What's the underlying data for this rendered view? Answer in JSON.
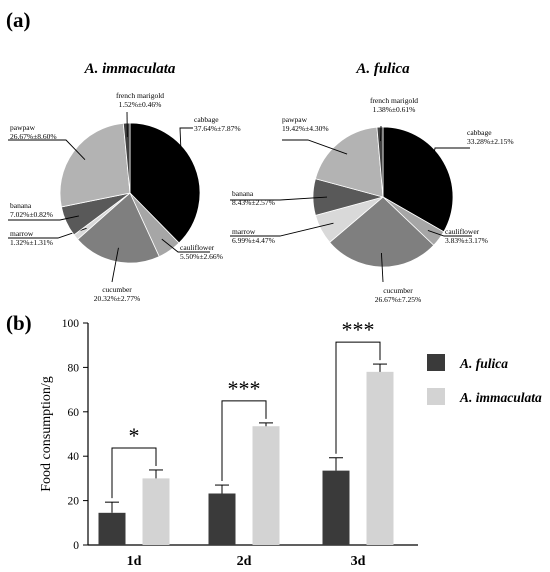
{
  "panel_labels": {
    "a": "(a)",
    "b": "(b)"
  },
  "colors": {
    "cabbage": "#000000",
    "cauliflower": "#a6a6a6",
    "cucumber": "#7f7f7f",
    "marrow": "#d9d9d9",
    "banana": "#595959",
    "pawpaw": "#b3b3b3",
    "french_marigold": "#404040",
    "fulica_bar": "#3a3a3a",
    "immaculata_bar": "#d3d3d3"
  },
  "chart_data": [
    {
      "type": "pie",
      "title": "A. immaculata",
      "slices": [
        {
          "key": "cabbage",
          "name": "cabbage",
          "value": 37.64,
          "label_value": "37.64%±7.87%"
        },
        {
          "key": "cauliflower",
          "name": "cauliflower",
          "value": 5.5,
          "label_value": "5.50%±2.66%"
        },
        {
          "key": "cucumber",
          "name": "cucumber",
          "value": 20.32,
          "label_value": "20.32%±2.77%"
        },
        {
          "key": "marrow",
          "name": "marrow",
          "value": 1.32,
          "label_value": "1.32%±1.31%"
        },
        {
          "key": "banana",
          "name": "banana",
          "value": 7.02,
          "label_value": "7.02%±0.82%"
        },
        {
          "key": "pawpaw",
          "name": "pawpaw",
          "value": 26.67,
          "label_value": "26.67%±8.60%"
        },
        {
          "key": "french_marigold",
          "name": "french marigold",
          "value": 1.52,
          "label_value": "1.52%±0.46%"
        }
      ]
    },
    {
      "type": "pie",
      "title": "A. fulica",
      "slices": [
        {
          "key": "cabbage",
          "name": "cabbage",
          "value": 33.28,
          "label_value": "33.28%±2.15%"
        },
        {
          "key": "cauliflower",
          "name": "cauliflower",
          "value": 3.83,
          "label_value": "3.83%±3.17%"
        },
        {
          "key": "cucumber",
          "name": "cucumber",
          "value": 26.67,
          "label_value": "26.67%±7.25%"
        },
        {
          "key": "marrow",
          "name": "marrow",
          "value": 6.99,
          "label_value": "6.99%±4.47%"
        },
        {
          "key": "banana",
          "name": "banana",
          "value": 8.43,
          "label_value": "8.43%±2.57%"
        },
        {
          "key": "pawpaw",
          "name": "pawpaw",
          "value": 19.42,
          "label_value": "19.42%±4.30%"
        },
        {
          "key": "french_marigold",
          "name": "french marigold",
          "value": 1.38,
          "label_value": "1.38%±0.61%"
        }
      ]
    },
    {
      "type": "bar",
      "categories": [
        "1d",
        "2d",
        "3d"
      ],
      "series": [
        {
          "name": "A. fulica",
          "values": [
            14.5,
            23.2,
            33.5
          ],
          "errors": [
            4.8,
            3.8,
            5.8
          ]
        },
        {
          "name": "A. immaculata",
          "values": [
            30.0,
            53.5,
            78.0
          ],
          "errors": [
            3.8,
            1.5,
            3.5
          ]
        }
      ],
      "significance": [
        "*",
        "***",
        "***"
      ],
      "ylabel": "Food consumption/g",
      "ylim": [
        0,
        100
      ],
      "yticks": [
        0,
        20,
        40,
        60,
        80,
        100
      ],
      "legend_position": "right"
    }
  ]
}
